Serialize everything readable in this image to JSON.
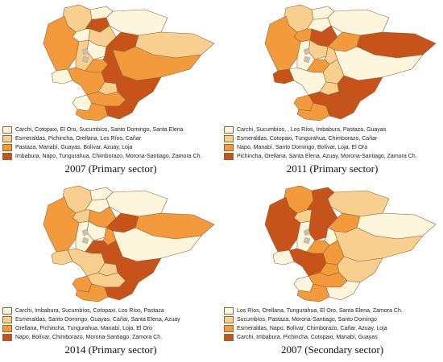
{
  "colors": {
    "class1": "#fdf5dc",
    "class2": "#f8cf8f",
    "class3": "#f29a3c",
    "class4": "#c7521a",
    "border": "#8a6a3a",
    "galapagos_gray": "#c9c0b2"
  },
  "panels": [
    {
      "title": "2007 (Primary sector)",
      "legend": [
        "Carchi, Cotopaxi, El Oro, Sucumbíos, Santo Domingo, Santa Elena",
        "Esmeraldas, Pichincha, Orellana, Los Ríos, Cañar",
        "Pastaza, Manabí, Guayas, Bolívar, Azuay, Loja",
        "Imbabura, Napo, Tungurahua, Chimborazo, Morona-Santiago, Zamora Ch."
      ]
    },
    {
      "title": "2011 (Primary sector)",
      "legend": [
        "Carchi, Sucumbíos, , Los Ríos, Imbabura, Pastaza, Guayas",
        "Esmeraldas, Cotopaxi, Tungurahua, Chimborazo, Cañar",
        "Napo, Manabí, Santo Domingo, Bolívar, Loja, El Oro",
        "Pichincha, Orellana, Santa Elena, Azuay, Morona-Santiago, Zamora Ch."
      ]
    },
    {
      "title": "2014 (Primary sector)",
      "legend": [
        "Carchi, Imbabura, Sucumbíos, Cotopaxi, Los Ríos, Pastaza",
        "Esmeraldas, Santo Domingo, Guayas, Cañar, Santa Elena, Azuay",
        "Orellana, Pichincha, Tungurahua, Manabí, Loja, El Oro",
        "Napo, Bolívar, Chimborazo, Morona-Santiago, Zamora Ch."
      ]
    },
    {
      "title": "2007 (Secondary sector)",
      "legend": [
        "Los Ríos, Orellana, Tungurahua, El Oro, Santa Elena, Zamora Ch.",
        "Sucumbíos, Pastaza, Morona-Santiago, Santo Domingo",
        "Esmeraldas, Napo, Bolívar, Chimborazo, Cañar, Azuay, Loja",
        "Carchi, Imbabura, Pichincha, Cotopaxi, Manabí, Guayas"
      ]
    }
  ],
  "maps": [
    {
      "carchi": 1,
      "imbabura": 4,
      "esmeraldas": 2,
      "sucumbios": 1,
      "pichincha": 2,
      "santo_domingo": 1,
      "manabi": 3,
      "napo": 4,
      "orellana": 2,
      "cotopaxi": 1,
      "tungurahua": 4,
      "los_rios": 2,
      "bolivar": 3,
      "chimborazo": 4,
      "pastaza": 3,
      "guayas": 3,
      "santa_elena": 1,
      "canar": 2,
      "azuay": 3,
      "morona": 4,
      "el_oro": 1,
      "loja": 3,
      "zamora": 4
    },
    {
      "carchi": 1,
      "imbabura": 1,
      "esmeraldas": 2,
      "sucumbios": 1,
      "pichincha": 4,
      "santo_domingo": 3,
      "manabi": 3,
      "napo": 3,
      "orellana": 4,
      "cotopaxi": 2,
      "tungurahua": 2,
      "los_rios": 1,
      "bolivar": 3,
      "chimborazo": 2,
      "pastaza": 1,
      "guayas": 1,
      "santa_elena": 4,
      "canar": 2,
      "azuay": 4,
      "morona": 4,
      "el_oro": 3,
      "loja": 3,
      "zamora": 4
    },
    {
      "carchi": 1,
      "imbabura": 1,
      "esmeraldas": 2,
      "sucumbios": 1,
      "pichincha": 3,
      "santo_domingo": 2,
      "manabi": 3,
      "napo": 4,
      "orellana": 3,
      "cotopaxi": 1,
      "tungurahua": 3,
      "los_rios": 1,
      "bolivar": 4,
      "chimborazo": 4,
      "pastaza": 1,
      "guayas": 2,
      "santa_elena": 2,
      "canar": 2,
      "azuay": 2,
      "morona": 4,
      "el_oro": 3,
      "loja": 3,
      "zamora": 4
    },
    {
      "carchi": 4,
      "imbabura": 4,
      "esmeraldas": 3,
      "sucumbios": 2,
      "pichincha": 4,
      "santo_domingo": 2,
      "manabi": 4,
      "napo": 3,
      "orellana": 1,
      "cotopaxi": 4,
      "tungurahua": 1,
      "los_rios": 1,
      "bolivar": 3,
      "chimborazo": 3,
      "pastaza": 2,
      "guayas": 4,
      "santa_elena": 1,
      "canar": 3,
      "azuay": 3,
      "morona": 2,
      "el_oro": 1,
      "loja": 3,
      "zamora": 1
    }
  ]
}
